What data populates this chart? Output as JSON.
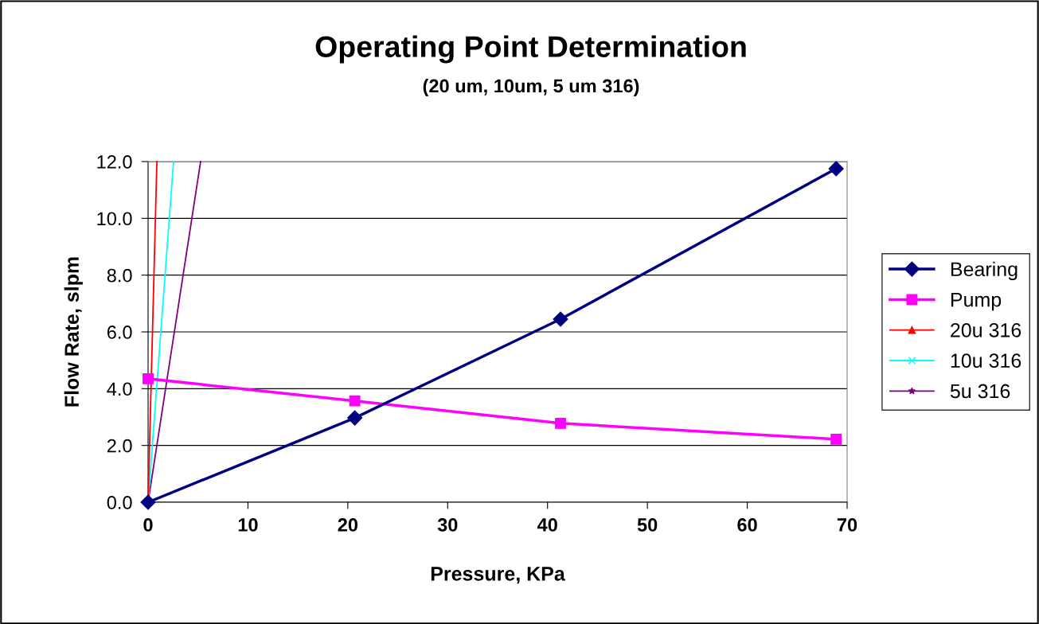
{
  "chart_data": {
    "type": "line",
    "title": "Operating Point Determination",
    "subtitle": "(20 um, 10um, 5 um 316)",
    "xlabel": "Pressure, KPa",
    "ylabel": "Flow Rate, slpm",
    "xlim": [
      0,
      70
    ],
    "xticks": [
      0,
      10,
      20,
      30,
      40,
      50,
      60,
      70
    ],
    "ylim": [
      0,
      12
    ],
    "yticks": [
      {
        "value": 0,
        "label": "0.0"
      },
      {
        "value": 2,
        "label": "2.0"
      },
      {
        "value": 4,
        "label": "4.0"
      },
      {
        "value": 6,
        "label": "6.0"
      },
      {
        "value": 8,
        "label": "8.0"
      },
      {
        "value": 10,
        "label": "10.0"
      },
      {
        "value": 12,
        "label": "12.0"
      }
    ],
    "grid": "y",
    "legend": "right",
    "line_style": "solid",
    "series": [
      {
        "name": "Bearing",
        "color": "#000080",
        "marker": "diamond",
        "x": [
          0,
          20.7,
          41.3,
          68.9
        ],
        "values": [
          0,
          2.97,
          6.45,
          11.75
        ]
      },
      {
        "name": "Pump",
        "color": "#ff00ff",
        "marker": "square",
        "x": [
          0,
          20.7,
          41.3,
          68.9
        ],
        "values": [
          4.35,
          3.57,
          2.78,
          2.22
        ]
      },
      {
        "name": "20u 316",
        "color": "#ff0000",
        "marker": "triangle",
        "x": [
          0,
          0.88
        ],
        "values": [
          0,
          12
        ]
      },
      {
        "name": "10u 316",
        "color": "#00ffff",
        "marker": "cross",
        "x": [
          0,
          2.55
        ],
        "values": [
          0,
          12
        ]
      },
      {
        "name": "5u 316",
        "color": "#800080",
        "marker": "star",
        "x": [
          0,
          5.26
        ],
        "values": [
          0,
          12
        ]
      }
    ]
  }
}
